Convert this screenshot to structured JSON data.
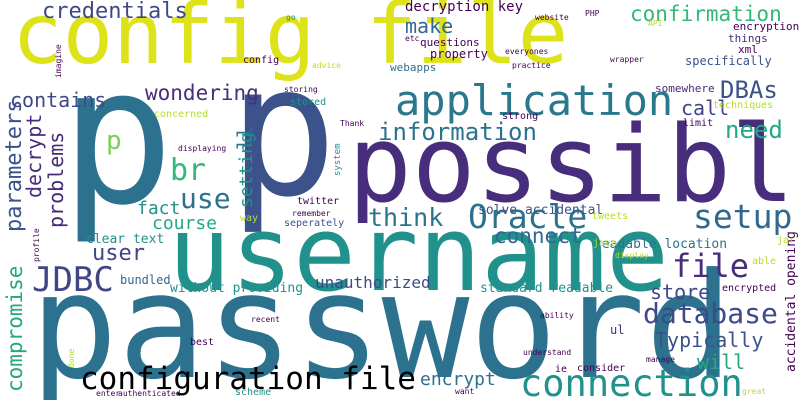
{
  "words": {
    "config_file": {
      "text": "config file",
      "color": "#dde318"
    },
    "p_1": {
      "text": "p",
      "color": "#2c728e"
    },
    "p_2": {
      "text": "p",
      "color": "#3b528b"
    },
    "password": {
      "text": "password",
      "color": "#2c728e"
    },
    "username": {
      "text": "username",
      "color": "#21918c"
    },
    "possible": {
      "text": "possible",
      "color": "#472d7b"
    },
    "application": {
      "text": "application",
      "color": "#2a788e"
    },
    "credentials": {
      "text": "credentials",
      "color": "#3e4989"
    },
    "confirmation": {
      "text": "confirmation",
      "color": "#35b779"
    },
    "decryption_key": {
      "text": "decryption key",
      "color": "#440154"
    },
    "make": {
      "text": "make",
      "color": "#31688e"
    },
    "connection": {
      "text": "connection",
      "color": "#21918c"
    },
    "configuration_file": {
      "text": "configuration file",
      "color": "#3b528b"
    },
    "Oracle": {
      "text": "Oracle",
      "color": "#2c728e"
    },
    "setup": {
      "text": "setup",
      "color": "#31688e"
    },
    "JDBC": {
      "text": "JDBC",
      "color": "#414487"
    },
    "database": {
      "text": "database",
      "color": "#3e4989"
    },
    "information": {
      "text": "information",
      "color": "#2c728e"
    },
    "contains": {
      "text": "contains",
      "color": "#3e4989"
    },
    "wondering": {
      "text": "wondering",
      "color": "#472d7b"
    },
    "DBAs": {
      "text": "DBAs",
      "color": "#3b528b"
    },
    "need": {
      "text": "need",
      "color": "#22a884"
    },
    "use": {
      "text": "use",
      "color": "#2c728e"
    },
    "br": {
      "text": "br",
      "color": "#35b779"
    },
    "p_small": {
      "text": "p",
      "color": "#7ad151"
    },
    "think": {
      "text": "think",
      "color": "#2c728e"
    },
    "file": {
      "text": "file",
      "color": "#472d7b"
    },
    "user": {
      "text": "user",
      "color": "#414487"
    },
    "fact": {
      "text": "fact",
      "color": "#21918c"
    },
    "course": {
      "text": "course",
      "color": "#22a884"
    },
    "connect": {
      "text": "connect",
      "color": "#31688e"
    },
    "store": {
      "text": "store",
      "color": "#3e4989"
    },
    "will": {
      "text": "will",
      "color": "#22a884"
    },
    "Typically": {
      "text": "Typically",
      "color": "#3b528b"
    },
    "call": {
      "text": "call",
      "color": "#414487"
    },
    "encrypt": {
      "text": "encrypt",
      "color": "#2c728e"
    },
    "unauthorized": {
      "text": "unauthorized",
      "color": "#3e4989"
    },
    "parameters": {
      "text": "parameters",
      "color": "#3b528b"
    },
    "decrypt": {
      "text": "decrypt",
      "color": "#472d7b"
    },
    "problems": {
      "text": "problems",
      "color": "#482878"
    },
    "compromise": {
      "text": "compromise",
      "color": "#22a884"
    },
    "setting": {
      "text": "setting",
      "color": "#21918c"
    },
    "ll": {
      "text": "ll",
      "color": "#2c728e"
    },
    "clear_text": {
      "text": "clear text",
      "color": "#21918c"
    },
    "bundled": {
      "text": "bundled",
      "color": "#31688e"
    },
    "without_providing": {
      "text": "without providing",
      "color": "#21918c"
    },
    "standard_readable": {
      "text": "standard readable",
      "color": "#21918c"
    },
    "solve_accidental": {
      "text": "solve accidental",
      "color": "#3b528b"
    },
    "readable_location": {
      "text": "readable location",
      "color": "#2c728e"
    },
    "accidental_opening": {
      "text": "accidental opening",
      "color": "#440154"
    },
    "encryption": {
      "text": "encryption",
      "color": "#440154"
    },
    "things": {
      "text": "things",
      "color": "#472d7b"
    },
    "xml": {
      "text": "xml",
      "color": "#440154"
    },
    "specifically": {
      "text": "specifically",
      "color": "#3b528b"
    },
    "somewhere": {
      "text": "somewhere",
      "color": "#482878"
    },
    "techniques": {
      "text": "techniques",
      "color": "#b5de2b"
    },
    "limit": {
      "text": "limit",
      "color": "#440154"
    },
    "questions": {
      "text": "questions",
      "color": "#440154"
    },
    "everyones": {
      "text": "everyones",
      "color": "#440154"
    },
    "property": {
      "text": "property",
      "color": "#440154"
    },
    "webapps": {
      "text": "webapps",
      "color": "#2c728e"
    },
    "practice": {
      "text": "practice",
      "color": "#440154"
    },
    "strong": {
      "text": "strong",
      "color": "#440154"
    },
    "stored": {
      "text": "stored",
      "color": "#21918c"
    },
    "storing": {
      "text": "storing",
      "color": "#440154"
    },
    "concerned": {
      "text": "concerned",
      "color": "#b5de2b"
    },
    "displaying": {
      "text": "displaying",
      "color": "#440154"
    },
    "Thank": {
      "text": "Thank",
      "color": "#440154"
    },
    "system": {
      "text": "system",
      "color": "#21918c"
    },
    "twitter": {
      "text": "twitter",
      "color": "#440154"
    },
    "remember": {
      "text": "remember",
      "color": "#440154"
    },
    "seperately": {
      "text": "seperately",
      "color": "#3b528b"
    },
    "tweets": {
      "text": "tweets",
      "color": "#b5de2b"
    },
    "java": {
      "text": "java",
      "color": "#b5de2b"
    },
    "jar": {
      "text": "jar",
      "color": "#b5de2b"
    },
    "able": {
      "text": "able",
      "color": "#b5de2b"
    },
    "display": {
      "text": "display",
      "color": "#b5de2b"
    },
    "encrypted": {
      "text": "encrypted",
      "color": "#440154"
    },
    "ability": {
      "text": "ability",
      "color": "#440154"
    },
    "best": {
      "text": "best",
      "color": "#440154"
    },
    "recent": {
      "text": "recent",
      "color": "#440154"
    },
    "ul": {
      "text": "ul",
      "color": "#472d7b"
    },
    "understand": {
      "text": "understand",
      "color": "#440154"
    },
    "consider": {
      "text": "consider",
      "color": "#440154"
    },
    "ie": {
      "text": "ie",
      "color": "#440154"
    },
    "manage": {
      "text": "manage",
      "color": "#440154"
    },
    "great": {
      "text": "great",
      "color": "#b5de2b"
    },
    "want": {
      "text": "want",
      "color": "#440154"
    },
    "scheme": {
      "text": "scheme",
      "color": "#21918c"
    },
    "authenticated": {
      "text": "authenticated",
      "color": "#440154"
    },
    "enter": {
      "text": "enter",
      "color": "#440154"
    },
    "config_small": {
      "text": "config",
      "color": "#440154"
    },
    "advice": {
      "text": "advice",
      "color": "#b5de2b"
    },
    "etc": {
      "text": "etc",
      "color": "#440154"
    },
    "website": {
      "text": "website",
      "color": "#440154"
    },
    "go": {
      "text": "go",
      "color": "#21918c"
    },
    "PHP": {
      "text": "PHP",
      "color": "#440154"
    },
    "API": {
      "text": "API",
      "color": "#b5de2b"
    },
    "wrapper": {
      "text": "wrapper",
      "color": "#440154"
    },
    "imagine": {
      "text": "imagine",
      "color": "#440154"
    },
    "way": {
      "text": "way",
      "color": "#b5de2b"
    },
    "profile": {
      "text": "profile",
      "color": "#440154"
    },
    "done": {
      "text": "done",
      "color": "#b5de2b"
    }
  }
}
